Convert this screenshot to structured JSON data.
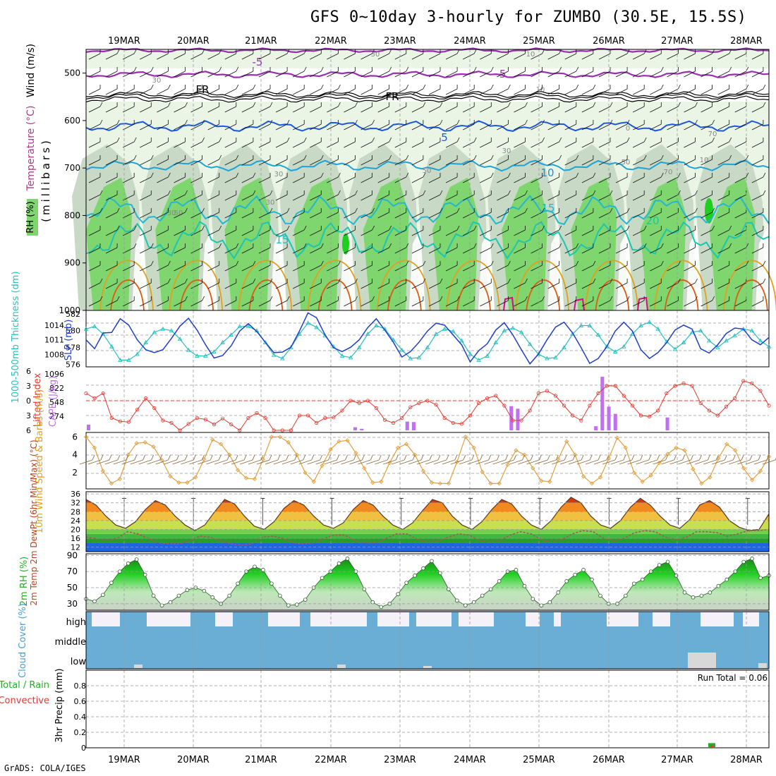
{
  "title": "GFS 0~10day 3-hourly for ZUMBO (30.5E, 15.5S)",
  "footer": "GrADS: COLA/IGES",
  "colors": {
    "rh_light": "#eaf5e6",
    "rh_mid": "#c8d9c6",
    "rh_dark": "#7fd56e",
    "rh_vdark": "#1fcf1f",
    "temp_purple": "#9a2fb0",
    "temp_blue": "#1e58d8",
    "temp_cyan": "#1ea3d8",
    "temp_teal": "#1cc6b0",
    "temp_orange": "#e0a020",
    "temp_red": "#e05a10",
    "slp": "#1f3fc8",
    "thick": "#2abfbf",
    "cape": "#c070f0",
    "li": "#e03a30",
    "wind": "#e0a040",
    "cloud": "#6aaed6",
    "cloud_bg": "#f4f2f8"
  },
  "chart_data": [
    {
      "type": "heatmap",
      "name": "upper-air",
      "dates": [
        "19MAR",
        "20MAR",
        "21MAR",
        "22MAR",
        "23MAR",
        "24MAR",
        "25MAR",
        "26MAR",
        "27MAR",
        "28MAR"
      ],
      "ylabel_color": "Temperature (°C)",
      "ylabel_wind": "Wind (m/s)",
      "ylabel_units": "(millibars)",
      "legend": "RH (%)",
      "pressure_ticks": [
        500,
        600,
        700,
        800,
        900,
        1000
      ],
      "ylim": [
        450,
        1000
      ],
      "isotherm_labels": [
        {
          "text": "-5",
          "color": "#9a2fb0"
        },
        {
          "text": "-5",
          "color": "#9a2fb0"
        },
        {
          "text": "FR",
          "color": "#000000"
        },
        {
          "text": "FR",
          "color": "#000000"
        },
        {
          "text": "5",
          "color": "#1e58d8"
        },
        {
          "text": "10",
          "color": "#1e90d8"
        },
        {
          "text": "15",
          "color": "#1eb8c8"
        },
        {
          "text": "15",
          "color": "#1eb8c8"
        },
        {
          "text": "20",
          "color": "#1cc6a0"
        }
      ],
      "rh_labels": [
        "30",
        "30",
        "30",
        "30",
        "30",
        "30",
        "10",
        "10",
        "0",
        "10",
        "50",
        "50",
        "70",
        "70",
        "50"
      ]
    },
    {
      "type": "line",
      "name": "thickness-slp",
      "ylabel_left": "1000-500mb Thickness (dm)",
      "ylabel_right": "SLP (mb)",
      "left_ticks": [
        576,
        578,
        580,
        582
      ],
      "right_ticks": [
        1008,
        1011,
        1014
      ],
      "series": [
        {
          "name": "SLP (mb)",
          "values": [
            1011.0,
            1009.2,
            1012.4,
            1012.5,
            1015.3,
            1014.0,
            1011.0,
            1009.0,
            1008.4,
            1009.0,
            1011.3,
            1013.8,
            1015.4,
            1013.0,
            1010.0,
            1007.3,
            1007.8,
            1009.8,
            1012.8,
            1014.3,
            1012.7,
            1010.5,
            1008.4,
            1008.5,
            1009.5,
            1012.8,
            1016.5,
            1015.5,
            1012.0,
            1009.4,
            1008.6,
            1009.5,
            1011.0,
            1013.5,
            1015.3,
            1013.0,
            1010.5,
            1007.5,
            1008.6,
            1010.5,
            1012.8,
            1014.4,
            1014.0,
            1012.0,
            1010.0,
            1006.5,
            1008.8,
            1010.2,
            1013.0,
            1014.5,
            1012.0,
            1009.0,
            1006.1,
            1008.1,
            1011.0,
            1013.6,
            1014.6,
            1012.4,
            1009.4,
            1006.2,
            1007.2,
            1009.6,
            1012.8,
            1014.6,
            1012.8,
            1009.0,
            1007.2,
            1008.4,
            1010.4,
            1013.0,
            1014.0,
            1013.2,
            1009.2,
            1008.3,
            1010.0,
            1012.3,
            1013.4,
            1013.2,
            1011.0,
            1010.0,
            1011.5
          ]
        },
        {
          "name": "Thickness (dm)",
          "values": [
            580.2,
            580.5,
            579.6,
            578.1,
            576.5,
            576.5,
            577.2,
            578.6,
            579.8,
            580.2,
            580.0,
            579.0,
            577.7,
            577.0,
            577.0,
            577.5,
            578.6,
            579.5,
            580.5,
            580.5,
            580.0,
            578.6,
            577.1,
            576.7,
            578.0,
            579.6,
            580.9,
            580.4,
            579.4,
            578.1,
            577.0,
            576.8,
            578.0,
            579.6,
            580.6,
            580.2,
            578.9,
            577.7,
            576.7,
            576.8,
            578.0,
            579.6,
            580.2,
            579.9,
            578.8,
            577.2,
            576.5,
            577.0,
            578.6,
            580.0,
            580.3,
            579.8,
            578.4,
            577.2,
            576.7,
            576.8,
            578.0,
            579.6,
            580.6,
            580.6,
            579.5,
            578.1,
            577.5,
            578.1,
            579.6,
            580.6,
            581.0,
            580.2,
            578.7,
            577.8,
            578.6,
            579.8,
            580.0,
            578.8,
            578.0,
            578.8,
            579.4,
            580.2,
            580.0,
            578.8,
            578.1
          ]
        }
      ]
    },
    {
      "type": "bar",
      "name": "cape-li",
      "ylabel_left": "Lifted Index",
      "ylabel_right": "CAPE (J/kg)",
      "li_ticks": [
        -6,
        -3,
        0,
        3,
        6
      ],
      "li_tick_labels": [
        "6",
        "3",
        "0",
        "3",
        "6"
      ],
      "cape_ticks": [
        274,
        548,
        822,
        1096
      ],
      "series": [
        {
          "name": "Lifted Index",
          "values": [
            -1.5,
            -0.5,
            -1.5,
            3.5,
            4.2,
            4.3,
            1.8,
            -0.5,
            1.5,
            4.0,
            4.5,
            6.0,
            4.7,
            3.5,
            3.8,
            4.8,
            3.6,
            4.8,
            6.0,
            3.5,
            2.5,
            3.5,
            6.0,
            6.0,
            6.0,
            3.0,
            3.0,
            4.5,
            3.5,
            3.4,
            2.0,
            0.0,
            0.5,
            0.0,
            1.5,
            3.9,
            4.5,
            3.5,
            1.3,
            0.5,
            0.0,
            0.8,
            3.5,
            4.5,
            4.7,
            3.0,
            0.5,
            -0.5,
            -1.0,
            1.0,
            4.0,
            4.0,
            2.0,
            -1.5,
            -2.0,
            -1.0,
            1.0,
            3.0,
            4.0,
            1.0,
            -1.5,
            -3.0,
            -3.0,
            -1.0,
            1.0,
            3.0,
            3.2,
            2.0,
            -1.5,
            -3.0,
            -3.5,
            -3.0,
            0.5,
            2.0,
            3.0,
            1.2,
            -0.5,
            -4.0,
            -3.5,
            -2.0,
            1.0
          ]
        },
        {
          "name": "CAPE (J/kg)",
          "values": [
            110,
            0,
            0,
            0,
            0,
            0,
            0,
            0,
            0,
            0,
            0,
            0,
            0,
            0,
            0,
            0,
            0,
            0,
            0,
            0,
            0,
            0,
            0,
            0,
            0,
            0,
            0,
            0,
            0,
            0,
            0,
            0,
            0,
            0,
            0,
            0,
            0,
            0,
            0,
            0,
            0,
            60,
            30,
            0,
            0,
            0,
            0,
            0,
            0,
            170,
            160,
            0,
            0,
            0,
            0,
            0,
            0,
            0,
            0,
            0,
            0,
            0,
            0,
            0,
            0,
            470,
            420,
            0,
            0,
            0,
            0,
            0,
            0,
            0,
            0,
            0,
            0,
            0,
            80,
            1040,
            460,
            320,
            0,
            0,
            0,
            0,
            0,
            0,
            0,
            250,
            0,
            0,
            0,
            0,
            0,
            0,
            0,
            0,
            0,
            0,
            0,
            0,
            0,
            0,
            0
          ]
        }
      ]
    },
    {
      "type": "line",
      "name": "wind10m",
      "ylabel": "10m Wind Speed & Barbs (m/s)",
      "ticks": [
        2,
        4,
        6
      ],
      "series": [
        {
          "name": "10m Wind Speed",
          "values": [
            6.0,
            4.8,
            2.2,
            0.8,
            1.3,
            4.0,
            5.3,
            5.4,
            4.9,
            3.4,
            1.6,
            0.9,
            0.9,
            1.5,
            3.5,
            5.7,
            5.2,
            4.0,
            2.3,
            1.4,
            1.3,
            3.5,
            6.0,
            6.0,
            5.4,
            4.0,
            2.0,
            1.0,
            2.8,
            4.6,
            5.5,
            5.6,
            4.2,
            2.5,
            0.9,
            1.0,
            3.1,
            4.8,
            5.2,
            4.0,
            2.2,
            0.9,
            0.8,
            0.8,
            3.2,
            6.0,
            4.8,
            2.1,
            0.8,
            0.8,
            2.9,
            4.5,
            4.0,
            2.5,
            1.1,
            1.0,
            3.5,
            5.5,
            4.0,
            1.6,
            0.8,
            1.5,
            3.6,
            5.9,
            4.8,
            2.0,
            1.0,
            1.7,
            3.1,
            4.1,
            4.8,
            4.5,
            2.4,
            0.8,
            1.5,
            3.6,
            5.2,
            4.5,
            2.5,
            1.2,
            2.2,
            3.8
          ]
        }
      ]
    },
    {
      "type": "area",
      "name": "temp2m",
      "ylabel": "2m Temp 2m DewPt (6hr Min/Max) (°C)",
      "ticks": [
        12,
        16,
        20,
        24,
        28,
        32,
        36
      ],
      "series": [
        {
          "name": "2m Temp",
          "values": [
            33.5,
            31.0,
            26.0,
            22.0,
            20.5,
            23.5,
            29.0,
            33.0,
            31.0,
            26.0,
            22.0,
            19.5,
            22.0,
            28.0,
            33.5,
            31.5,
            26.0,
            21.5,
            20.0,
            23.5,
            29.5,
            33.0,
            31.0,
            26.0,
            22.0,
            20.5,
            23.0,
            29.0,
            33.0,
            31.0,
            26.0,
            22.0,
            20.0,
            23.0,
            28.5,
            33.5,
            32.0,
            26.0,
            22.0,
            20.0,
            23.5,
            29.0,
            33.5,
            31.5,
            26.0,
            22.0,
            20.0,
            24.0,
            30.0,
            34.5,
            32.0,
            26.0,
            22.0,
            20.5,
            24.0,
            30.0,
            34.0,
            31.0,
            26.0,
            22.0,
            20.5,
            24.5,
            31.0,
            33.0,
            30.0,
            24.0,
            21.0,
            19.5,
            20.0,
            27.0
          ]
        },
        {
          "name": "2m DewPt",
          "values": [
            16.5,
            16.0,
            15.5,
            16.0,
            19.0,
            18.0,
            16.0,
            14.0,
            13.5,
            13.5,
            15.0,
            17.0,
            16.5,
            15.0,
            13.5,
            13.0,
            13.5,
            16.5,
            17.0,
            16.0,
            14.0,
            13.5,
            14.0,
            16.0,
            17.5,
            17.5,
            15.0,
            14.0,
            14.0,
            16.0,
            18.0,
            18.0,
            15.5,
            14.5,
            15.0,
            16.5,
            18.0,
            17.5,
            15.0,
            14.5,
            15.0,
            17.5,
            19.0,
            18.0,
            15.5,
            14.5,
            15.5,
            18.0,
            19.5,
            19.0,
            16.0,
            15.0,
            16.0,
            18.5,
            19.5,
            19.0,
            16.5,
            15.5,
            16.5,
            19.0,
            19.0,
            18.5,
            17.0,
            18.0,
            19.5,
            19.5,
            20.0
          ]
        }
      ]
    },
    {
      "type": "area",
      "name": "rh2m",
      "ylabel": "2m RH (%)",
      "ticks": [
        30,
        50,
        70,
        90
      ],
      "series": [
        {
          "name": "2m RH",
          "values": [
            36,
            33,
            41,
            56,
            70,
            80,
            85,
            66,
            40,
            28,
            32,
            40,
            47,
            50,
            46,
            38,
            30,
            40,
            55,
            70,
            76,
            72,
            55,
            40,
            28,
            29,
            35,
            50,
            62,
            70,
            80,
            86,
            70,
            48,
            32,
            26,
            30,
            42,
            56,
            65,
            74,
            83,
            68,
            48,
            34,
            28,
            32,
            40,
            48,
            58,
            70,
            72,
            52,
            36,
            28,
            32,
            44,
            58,
            66,
            72,
            60,
            40,
            30,
            30,
            40,
            55,
            60,
            70,
            78,
            82,
            65,
            44,
            38,
            40,
            44,
            52,
            60,
            70,
            82,
            86,
            62,
            65
          ]
        }
      ]
    },
    {
      "type": "bar",
      "name": "cloud-cover",
      "ylabel": "Cloud Cover (%)",
      "categories": [
        "high",
        "middle",
        "low"
      ]
    },
    {
      "type": "bar",
      "name": "precip",
      "ylabel_left": "Total / Rain",
      "ylabel_left2": "Convective",
      "ylabel": "3hr Precip (mm)",
      "annotation": "Run Total = 0.06",
      "ticks": [
        0,
        0.2,
        0.4,
        0.6,
        0.8
      ],
      "tick_labels": [
        "0",
        "0.2",
        "0.4",
        "0.6",
        "0.8"
      ],
      "ylim": [
        0,
        1.0
      ],
      "values": [
        {
          "x": "27MAR",
          "total": 0.06,
          "convective": 0.03
        }
      ]
    }
  ]
}
